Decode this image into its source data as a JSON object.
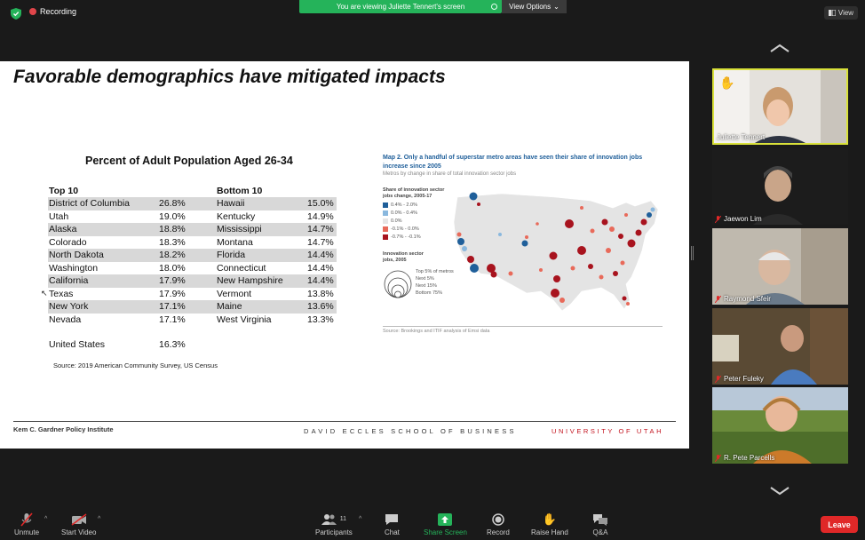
{
  "topbar": {
    "recording": "Recording",
    "viewing": "You are viewing Juliette Tennert's screen",
    "view_options": "View Options",
    "view": "View"
  },
  "slide": {
    "title": "Favorable demographics have mitigated impacts",
    "table_title": "Percent of Adult Population Aged 26-34",
    "top_header": "Top 10",
    "bottom_header": "Bottom 10",
    "rows": [
      {
        "top": "District of Columbia",
        "top_v": "26.8%",
        "bottom": "Hawaii",
        "bottom_v": "15.0%"
      },
      {
        "top": "Utah",
        "top_v": "19.0%",
        "bottom": "Kentucky",
        "bottom_v": "14.9%"
      },
      {
        "top": "Alaska",
        "top_v": "18.8%",
        "bottom": "Mississippi",
        "bottom_v": "14.7%"
      },
      {
        "top": "Colorado",
        "top_v": "18.3%",
        "bottom": "Montana",
        "bottom_v": "14.7%"
      },
      {
        "top": "North Dakota",
        "top_v": "18.2%",
        "bottom": "Florida",
        "bottom_v": "14.4%"
      },
      {
        "top": "Washington",
        "top_v": "18.0%",
        "bottom": "Connecticut",
        "bottom_v": "14.4%"
      },
      {
        "top": "California",
        "top_v": "17.9%",
        "bottom": "New Hampshire",
        "bottom_v": "14.4%"
      },
      {
        "top": "Texas",
        "top_v": "17.9%",
        "bottom": "Vermont",
        "bottom_v": "13.8%"
      },
      {
        "top": "New York",
        "top_v": "17.1%",
        "bottom": "Maine",
        "bottom_v": "13.6%"
      },
      {
        "top": "Nevada",
        "top_v": "17.1%",
        "bottom": "West Virginia",
        "bottom_v": "13.3%"
      }
    ],
    "us_label": "United States",
    "us_value": "16.3%",
    "source": "Source: 2019 American Community Survey, US Census",
    "map": {
      "title": "Map 2. Only a handful of superstar metro areas have seen their share of innovation jobs increase since 2005",
      "subtitle": "Metros by change in share of total innovation sector jobs",
      "legend_title_1": "Share of innovation sector",
      "legend_title_2": "jobs change, 2005-17",
      "legend": [
        {
          "label": "0.4% - 2.0%",
          "color": "#1f5f9a"
        },
        {
          "label": "0.0% - 0.4%",
          "color": "#8ab8de"
        },
        {
          "label": "0.0%",
          "color": "#e6e6e6"
        },
        {
          "label": "-0.1% - 0.0%",
          "color": "#e86a5a"
        },
        {
          "label": "-0.7% - -0.1%",
          "color": "#a8131e"
        }
      ],
      "size_title_1": "Innovation sector",
      "size_title_2": "jobs, 2005",
      "size_legend": [
        "Top 5% of metros",
        "Next 5%",
        "Next 15%",
        "Bottom 75%"
      ],
      "source": "Source: Brookings and ITIF analysis of Emsi data"
    },
    "footer_left": "Kem C. Gardner Policy Institute",
    "footer_mid": "DAVID ECCLES SCHOOL OF BUSINESS",
    "footer_right": "UNIVERSITY OF UTAH"
  },
  "participants": [
    {
      "name": "Juliette Tennert",
      "muted": false,
      "hand_raised": true
    },
    {
      "name": "Jaewon Lim",
      "muted": true
    },
    {
      "name": "Raymond Sfeir",
      "muted": true
    },
    {
      "name": "Peter Fuleky",
      "muted": true
    },
    {
      "name": "R. Pete Parcells",
      "muted": true
    }
  ],
  "toolbar": {
    "unmute": "Unmute",
    "start_video": "Start Video",
    "participants": "Participants",
    "participant_count": "11",
    "chat": "Chat",
    "share_screen": "Share Screen",
    "record": "Record",
    "raise_hand": "Raise Hand",
    "qa": "Q&A",
    "leave": "Leave"
  }
}
